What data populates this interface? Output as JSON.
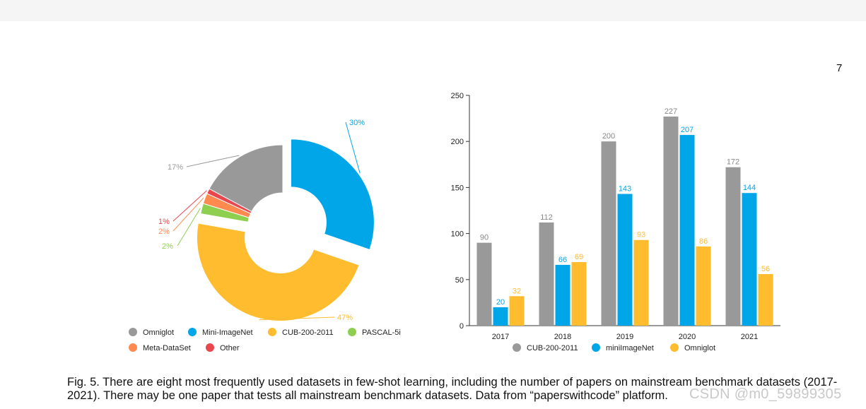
{
  "page_number": "7",
  "caption": "Fig. 5. There are eight most frequently used datasets in few-shot learning, including the number of papers on mainstream benchmark datasets (2017-2021). There may be one paper that tests all mainstream benchmark datasets. Data from “paperswithcode” platform.",
  "watermark": "CSDN @m0_59899305",
  "chart_data": [
    {
      "type": "pie",
      "variant": "donut",
      "title": "",
      "slices": [
        {
          "label": "Omniglot",
          "value": 17,
          "display": "17%",
          "color": "#999999"
        },
        {
          "label": "Mini-ImageNet",
          "value": 30,
          "display": "30%",
          "color": "#00A6E8"
        },
        {
          "label": "CUB-200-2011",
          "value": 47,
          "display": "47%",
          "color": "#FFBC2E"
        },
        {
          "label": "PASCAL-5i",
          "value": 2,
          "display": "2%",
          "color": "#8FCF4F"
        },
        {
          "label": "Meta-DataSet",
          "value": 2,
          "display": "2%",
          "color": "#FF8A50"
        },
        {
          "label": "Other",
          "value": 1,
          "display": "1%",
          "color": "#E8474E"
        }
      ],
      "legend": [
        "Omniglot",
        "Mini-ImageNet",
        "CUB-200-2011",
        "PASCAL-5i",
        "Meta-DataSet",
        "Other"
      ],
      "legend_position": "bottom"
    },
    {
      "type": "bar",
      "title": "",
      "xlabel": "",
      "ylabel": "",
      "categories": [
        "2017",
        "2018",
        "2019",
        "2020",
        "2021"
      ],
      "series": [
        {
          "name": "CUB-200-2011",
          "color": "#999999",
          "values": [
            90,
            112,
            200,
            227,
            172
          ]
        },
        {
          "name": "miniImageNet",
          "color": "#00A6E8",
          "values": [
            20,
            66,
            143,
            207,
            144
          ]
        },
        {
          "name": "Omniglot",
          "color": "#FFBC2E",
          "values": [
            32,
            69,
            93,
            86,
            56
          ]
        }
      ],
      "ylim": [
        0,
        250
      ],
      "yticks": [
        0,
        50,
        100,
        150,
        200,
        250
      ],
      "grid": false,
      "legend_position": "bottom"
    }
  ]
}
